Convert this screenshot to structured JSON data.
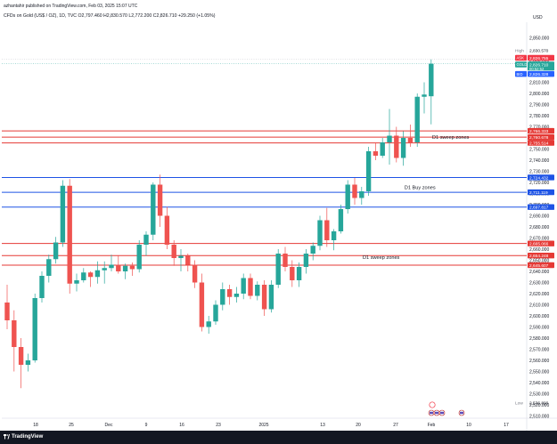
{
  "publish_line": "azhantahir published on TradingView.com, Feb 03, 2025 15:07 UTC",
  "header_line": "CFDs on Gold (US$ / OZ), 1D, TVC  O2,797.460 H2,830.570 L2,772.200 C2,826.710 +29.250 (+1.05%)",
  "footer_brand": "TradingView",
  "chart_data": {
    "type": "candlestick",
    "currency": "USD",
    "y_range": [
      2508,
      2864
    ],
    "y_ticks": [
      2850,
      2830,
      2810,
      2800,
      2790,
      2780,
      2770,
      2760,
      2750,
      2740,
      2730,
      2720,
      2710,
      2700,
      2690,
      2680,
      2670,
      2660,
      2650,
      2640,
      2630,
      2620,
      2610,
      2600,
      2590,
      2580,
      2570,
      2560,
      2550,
      2540,
      2530,
      2520,
      2510
    ],
    "x_labels": [
      "18",
      "25",
      "Dec",
      "9",
      "16",
      "23",
      "2025",
      "13",
      "20",
      "27",
      "Feb",
      "10",
      "17"
    ],
    "candles": [
      [
        2612,
        2628,
        2588,
        2596
      ],
      [
        2596,
        2605,
        2550,
        2572
      ],
      [
        2572,
        2580,
        2535,
        2556
      ],
      [
        2556,
        2566,
        2550,
        2560
      ],
      [
        2560,
        2620,
        2558,
        2616
      ],
      [
        2616,
        2640,
        2612,
        2636
      ],
      [
        2636,
        2655,
        2630,
        2651
      ],
      [
        2651,
        2671,
        2647,
        2666
      ],
      [
        2666,
        2722,
        2662,
        2717
      ],
      [
        2717,
        2723,
        2620,
        2629
      ],
      [
        2629,
        2638,
        2622,
        2632
      ],
      [
        2632,
        2643,
        2630,
        2639
      ],
      [
        2639,
        2640,
        2626,
        2635
      ],
      [
        2635,
        2649,
        2629,
        2641
      ],
      [
        2641,
        2649,
        2629,
        2643
      ],
      [
        2643,
        2655,
        2640,
        2646
      ],
      [
        2646,
        2654,
        2638,
        2640
      ],
      [
        2640,
        2647,
        2633,
        2645
      ],
      [
        2645,
        2648,
        2636,
        2642
      ],
      [
        2642,
        2668,
        2639,
        2664
      ],
      [
        2664,
        2676,
        2654,
        2673
      ],
      [
        2673,
        2720,
        2668,
        2718
      ],
      [
        2718,
        2727,
        2680,
        2690
      ],
      [
        2690,
        2698,
        2660,
        2664
      ],
      [
        2664,
        2668,
        2645,
        2652
      ],
      [
        2652,
        2660,
        2640,
        2654
      ],
      [
        2654,
        2656,
        2640,
        2646
      ],
      [
        2646,
        2650,
        2625,
        2630
      ],
      [
        2630,
        2638,
        2586,
        2590
      ],
      [
        2590,
        2600,
        2584,
        2595
      ],
      [
        2595,
        2614,
        2592,
        2610
      ],
      [
        2610,
        2630,
        2605,
        2624
      ],
      [
        2624,
        2628,
        2610,
        2617
      ],
      [
        2617,
        2626,
        2612,
        2620
      ],
      [
        2620,
        2638,
        2615,
        2634
      ],
      [
        2634,
        2638,
        2615,
        2618
      ],
      [
        2618,
        2631,
        2614,
        2628
      ],
      [
        2628,
        2632,
        2600,
        2606
      ],
      [
        2606,
        2632,
        2603,
        2628
      ],
      [
        2628,
        2660,
        2625,
        2656
      ],
      [
        2656,
        2662,
        2640,
        2644
      ],
      [
        2644,
        2650,
        2626,
        2632
      ],
      [
        2632,
        2648,
        2626,
        2644
      ],
      [
        2644,
        2660,
        2638,
        2656
      ],
      [
        2656,
        2666,
        2650,
        2663
      ],
      [
        2663,
        2690,
        2659,
        2686
      ],
      [
        2686,
        2697,
        2662,
        2668
      ],
      [
        2668,
        2678,
        2659,
        2676
      ],
      [
        2676,
        2700,
        2674,
        2696
      ],
      [
        2696,
        2722,
        2692,
        2718
      ],
      [
        2718,
        2724,
        2700,
        2706
      ],
      [
        2706,
        2716,
        2700,
        2712
      ],
      [
        2712,
        2752,
        2708,
        2748
      ],
      [
        2748,
        2756,
        2740,
        2744
      ],
      [
        2744,
        2760,
        2742,
        2756
      ],
      [
        2756,
        2786,
        2736,
        2762
      ],
      [
        2762,
        2770,
        2738,
        2742
      ],
      [
        2742,
        2766,
        2735,
        2760
      ],
      [
        2760,
        2772,
        2752,
        2756
      ],
      [
        2756,
        2800,
        2752,
        2797
      ],
      [
        2797,
        2810,
        2782,
        2799
      ],
      [
        2797.46,
        2830.57,
        2772.2,
        2826.71
      ]
    ],
    "candle_colors": {
      "up": "#26a69a",
      "down": "#ef5350"
    },
    "levels": [
      {
        "value": 2766.333,
        "label": "2,766.333",
        "color": "#e53935"
      },
      {
        "value": 2760.678,
        "label": "2,760.678",
        "color": "#e53935"
      },
      {
        "value": 2755.514,
        "label": "2,755.514",
        "color": "#e53935"
      },
      {
        "value": 2724.432,
        "label": "2,724.432",
        "color": "#1e53e5"
      },
      {
        "value": 2711.119,
        "label": "2,711.119",
        "color": "#1e53e5"
      },
      {
        "value": 2697.817,
        "label": "2,697.817",
        "color": "#1e53e5"
      },
      {
        "value": 2665.066,
        "label": "2,665.066",
        "color": "#e53935"
      },
      {
        "value": 2654.248,
        "label": "2,654.248",
        "color": "#e53935"
      },
      {
        "value": 2645.607,
        "label": "2,645.607",
        "color": "#e53935"
      }
    ],
    "zone_labels": [
      {
        "text": "D1 sweep zones",
        "value": 2760.678,
        "candle_index": 60
      },
      {
        "text": "D1 Buy zones",
        "value": 2715.5,
        "candle_index": 56
      },
      {
        "text": "D1 sweep zones",
        "value": 2652.5,
        "candle_index": 50
      }
    ],
    "price_badges": [
      {
        "text": "High",
        "value": "2,830.570",
        "y_value": 2838.5,
        "style": "plain"
      },
      {
        "text": "ASK",
        "value": "2,826.755",
        "y_value": 2832.0,
        "style": "red"
      },
      {
        "text": "GOLD",
        "value": "2,826.710",
        "sub": "00:52:52",
        "y_value": 2826.0,
        "style": "green"
      },
      {
        "text": "BID",
        "value": "2,826.328",
        "y_value": 2817.5,
        "style": "blue"
      },
      {
        "text": "Low",
        "value": "2,536.890",
        "y_value": 2522.0,
        "style": "plain"
      }
    ],
    "high_value": 2830.57,
    "last_value": 2826.71
  }
}
